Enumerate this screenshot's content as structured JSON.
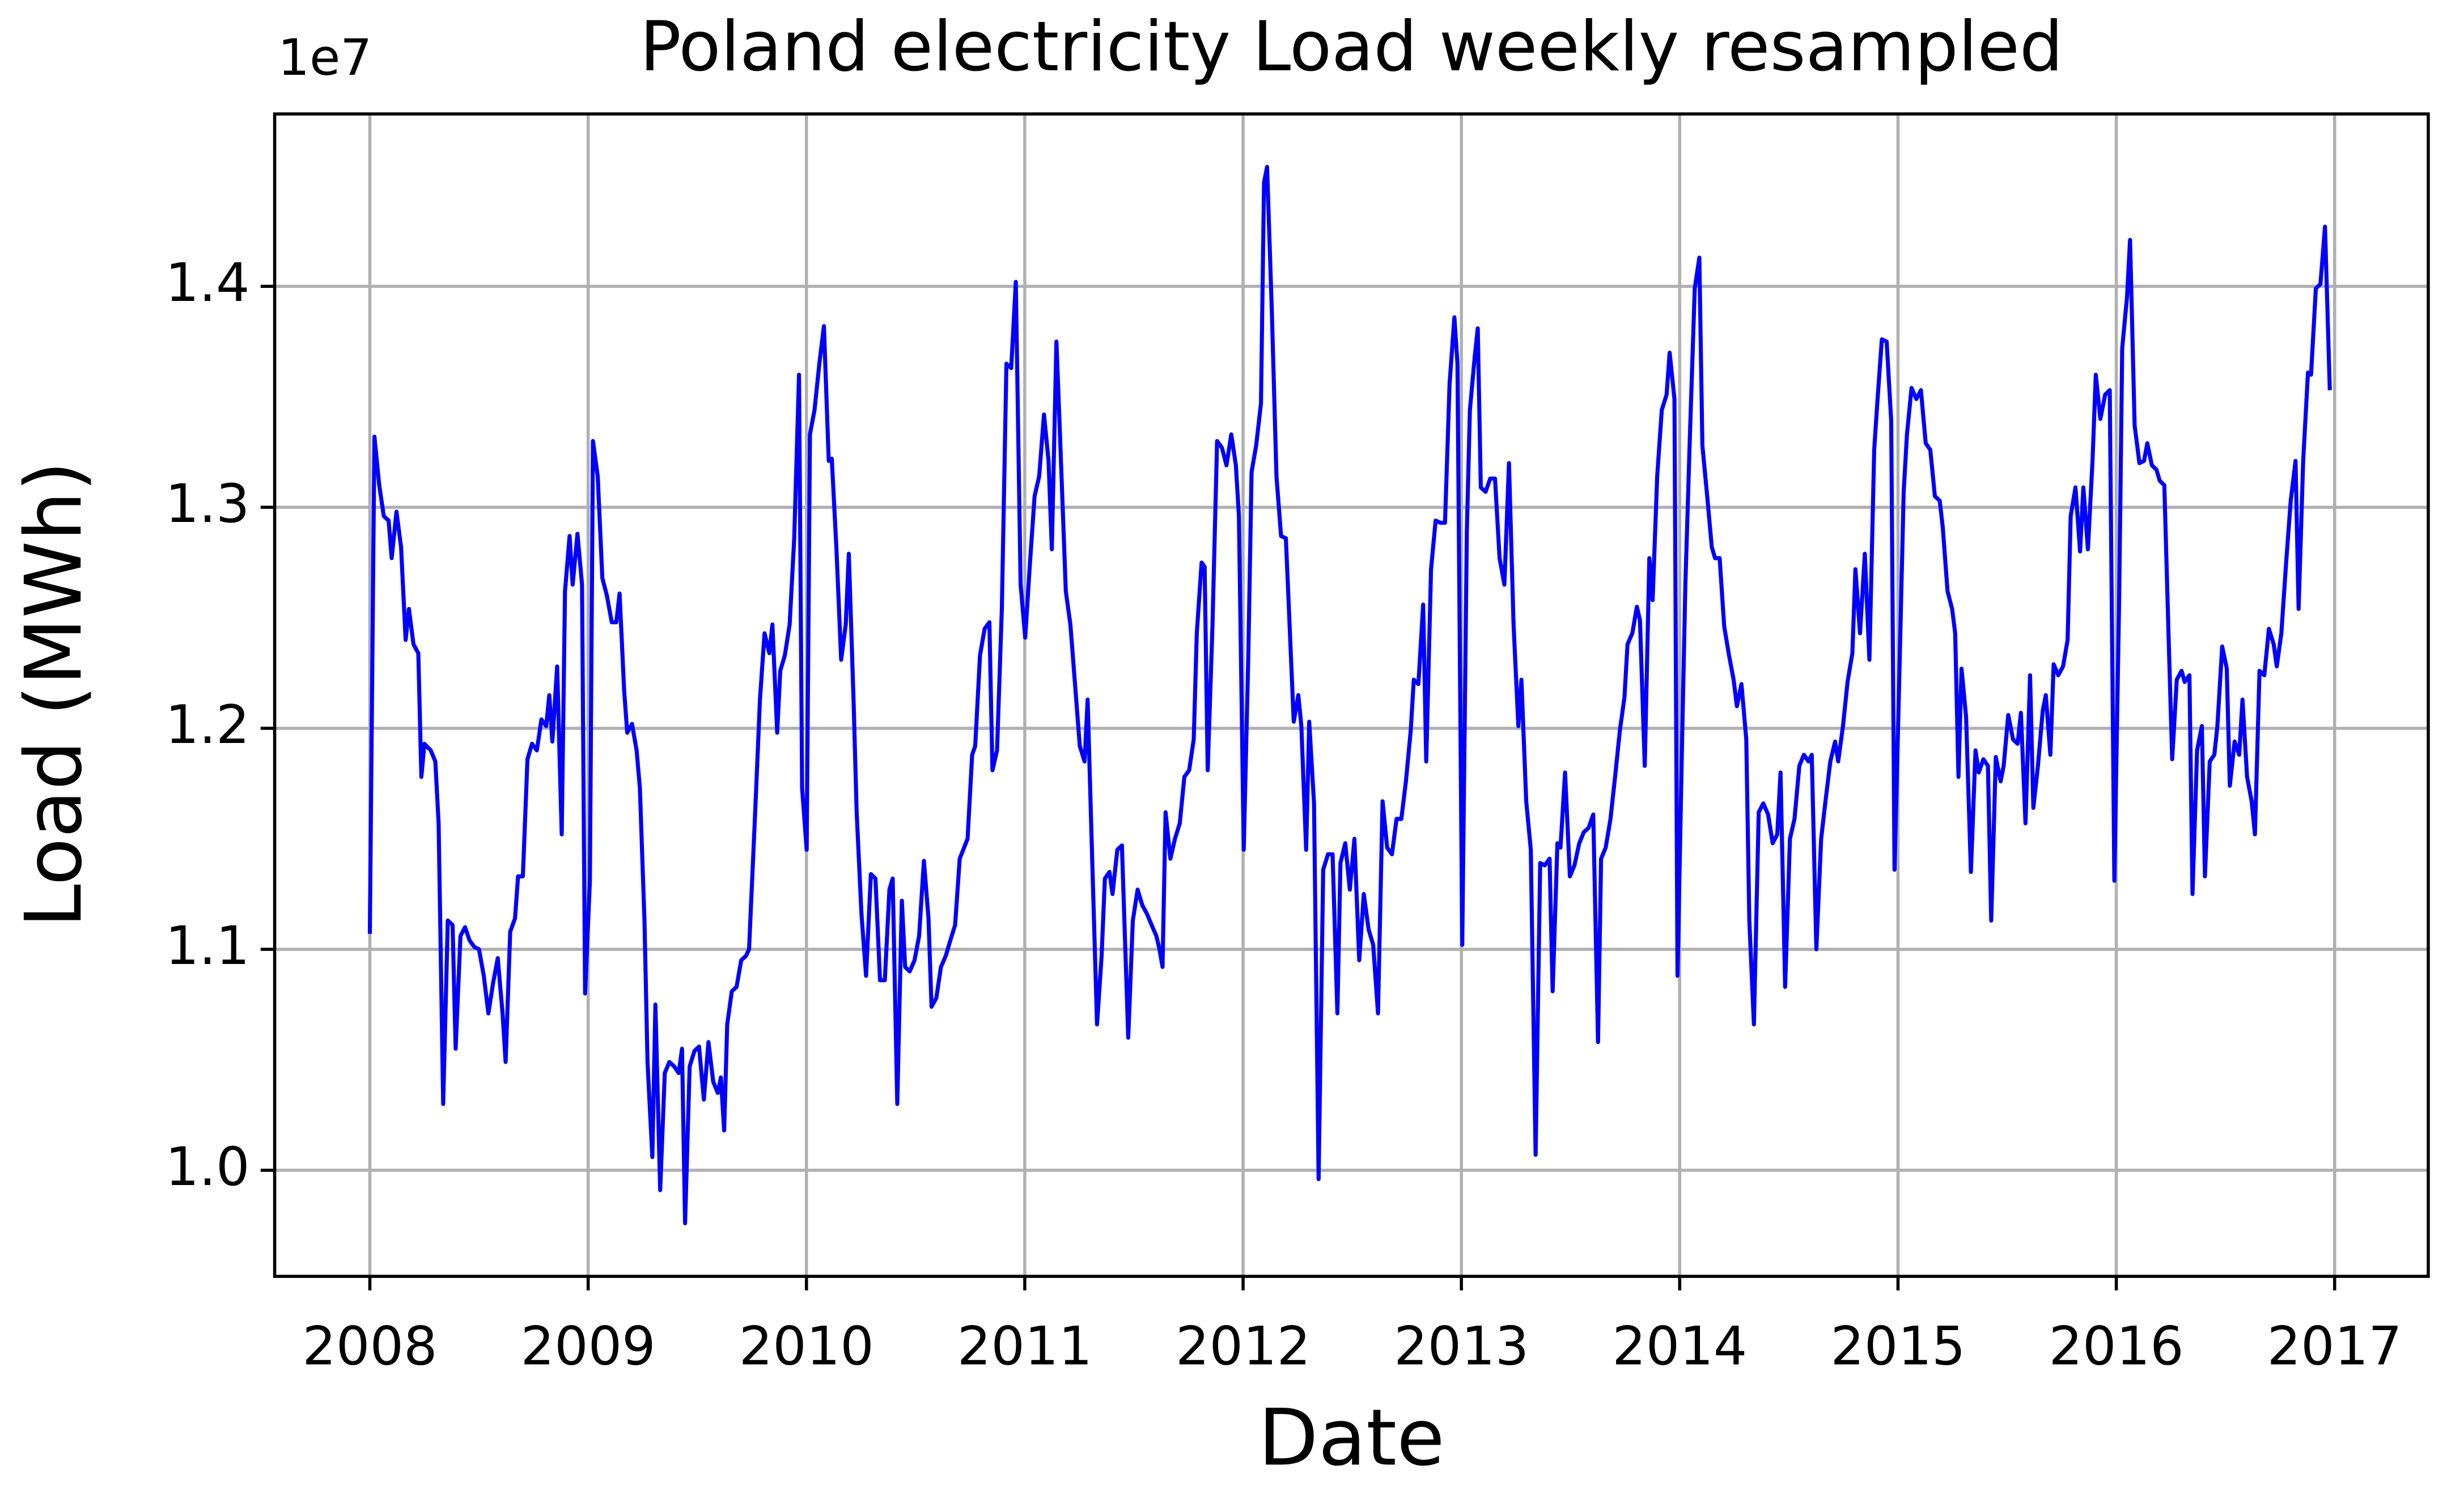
{
  "chart_data": {
    "type": "line",
    "title": "Poland electricity Load weekly resampled",
    "x_label": "Date",
    "y_label": "Load (MWh)",
    "y_offset_label": "1e7",
    "color": "#0000ff",
    "grid": true,
    "xlim": [
      2007.564,
      2017.429
    ],
    "ylim": [
      0.952,
      1.478
    ],
    "xticks": [
      2008,
      2009,
      2010,
      2011,
      2012,
      2013,
      2014,
      2015,
      2016,
      2017
    ],
    "yticks": [
      {
        "value": 1,
        "label": "1.0"
      },
      1.1,
      1.2,
      1.3,
      1.4
    ],
    "x": [
      2008,
      2008.021,
      2008.043,
      2008.064,
      2008.086,
      2008.1,
      2008.122,
      2008.143,
      2008.164,
      2008.179,
      2008.2,
      2008.222,
      2008.236,
      2008.25,
      2008.279,
      2008.3,
      2008.315,
      2008.336,
      2008.357,
      2008.379,
      2008.393,
      2008.415,
      2008.436,
      2008.457,
      2008.479,
      2008.5,
      2008.522,
      2008.543,
      2008.565,
      2008.586,
      2008.608,
      2008.622,
      2008.643,
      2008.665,
      2008.679,
      2008.701,
      2008.722,
      2008.743,
      2008.765,
      2008.786,
      2008.808,
      2008.822,
      2008.836,
      2008.858,
      2008.879,
      2008.894,
      2008.915,
      2008.929,
      2008.951,
      2008.972,
      2008.986,
      2009.008,
      2009.022,
      2009.044,
      2009.065,
      2009.086,
      2009.108,
      2009.129,
      2009.144,
      2009.165,
      2009.179,
      2009.201,
      2009.222,
      2009.237,
      2009.258,
      2009.272,
      2009.294,
      2009.308,
      2009.33,
      2009.351,
      2009.372,
      2009.394,
      2009.415,
      2009.43,
      2009.444,
      2009.465,
      2009.487,
      2009.508,
      2009.53,
      2009.551,
      2009.573,
      2009.594,
      2009.608,
      2009.623,
      2009.637,
      2009.658,
      2009.68,
      2009.701,
      2009.723,
      2009.737,
      2009.766,
      2009.787,
      2009.808,
      2009.83,
      2009.844,
      2009.866,
      2009.88,
      2009.901,
      2009.923,
      2009.944,
      2009.966,
      2009.98,
      2010.001,
      2010.016,
      2010.037,
      2010.059,
      2010.08,
      2010.102,
      2010.116,
      2010.137,
      2010.159,
      2010.18,
      2010.194,
      2010.216,
      2010.23,
      2010.252,
      2010.273,
      2010.295,
      2010.316,
      2010.337,
      2010.359,
      2010.38,
      2010.395,
      2010.416,
      2010.437,
      2010.452,
      2010.473,
      2010.495,
      2010.516,
      2010.538,
      2010.559,
      2010.573,
      2010.595,
      2010.616,
      2010.638,
      2010.659,
      2010.681,
      2010.702,
      2010.738,
      2010.759,
      2010.773,
      2010.795,
      2010.816,
      2010.838,
      2010.852,
      2010.873,
      2010.895,
      2010.916,
      2010.938,
      2010.959,
      2010.981,
      2011.002,
      2011.024,
      2011.045,
      2011.066,
      2011.088,
      2011.109,
      2011.124,
      2011.145,
      2011.159,
      2011.188,
      2011.209,
      2011.231,
      2011.252,
      2011.274,
      2011.288,
      2011.31,
      2011.331,
      2011.352,
      2011.367,
      2011.388,
      2011.402,
      2011.424,
      2011.445,
      2011.474,
      2011.495,
      2011.517,
      2011.538,
      2011.56,
      2011.581,
      2011.603,
      2011.617,
      2011.631,
      2011.645,
      2011.667,
      2011.688,
      2011.71,
      2011.731,
      2011.753,
      2011.774,
      2011.788,
      2011.81,
      2011.824,
      2011.838,
      2011.86,
      2011.881,
      2011.903,
      2011.924,
      2011.946,
      2011.967,
      2011.981,
      2012.003,
      2012.024,
      2012.039,
      2012.06,
      2012.082,
      2012.096,
      2012.11,
      2012.132,
      2012.153,
      2012.174,
      2012.196,
      2012.21,
      2012.232,
      2012.253,
      2012.267,
      2012.289,
      2012.303,
      2012.325,
      2012.346,
      2012.367,
      2012.389,
      2012.41,
      2012.432,
      2012.446,
      2012.468,
      2012.489,
      2012.51,
      2012.532,
      2012.553,
      2012.575,
      2012.596,
      2012.618,
      2012.639,
      2012.66,
      2012.682,
      2012.703,
      2012.725,
      2012.746,
      2012.768,
      2012.782,
      2012.803,
      2012.825,
      2012.839,
      2012.861,
      2012.882,
      2012.904,
      2012.925,
      2012.946,
      2012.968,
      2012.982,
      2013.004,
      2013.025,
      2013.039,
      2013.061,
      2013.075,
      2013.089,
      2013.111,
      2013.132,
      2013.154,
      2013.175,
      2013.197,
      2013.218,
      2013.239,
      2013.261,
      2013.275,
      2013.297,
      2013.318,
      2013.34,
      2013.361,
      2013.382,
      2013.404,
      2013.418,
      2013.44,
      2013.454,
      2013.475,
      2013.497,
      2013.518,
      2013.54,
      2013.561,
      2013.583,
      2013.604,
      2013.626,
      2013.64,
      2013.661,
      2013.683,
      2013.704,
      2013.726,
      2013.747,
      2013.761,
      2013.783,
      2013.804,
      2013.818,
      2013.84,
      2013.861,
      2013.876,
      2013.897,
      2013.918,
      2013.94,
      2013.954,
      2013.976,
      2013.99,
      2014.011,
      2014.026,
      2014.047,
      2014.069,
      2014.09,
      2014.104,
      2014.126,
      2014.147,
      2014.162,
      2014.183,
      2014.204,
      2014.226,
      2014.247,
      2014.262,
      2014.283,
      2014.305,
      2014.319,
      2014.34,
      2014.362,
      2014.383,
      2014.405,
      2014.426,
      2014.447,
      2014.462,
      2014.483,
      2014.505,
      2014.526,
      2014.548,
      2014.569,
      2014.59,
      2014.605,
      2014.626,
      2014.648,
      2014.669,
      2014.69,
      2014.712,
      2014.726,
      2014.748,
      2014.769,
      2014.791,
      2014.805,
      2014.826,
      2014.848,
      2014.869,
      2014.891,
      2014.905,
      2014.926,
      2014.948,
      2014.969,
      2014.984,
      2015.005,
      2015.026,
      2015.041,
      2015.062,
      2015.084,
      2015.105,
      2015.127,
      2015.148,
      2015.169,
      2015.191,
      2015.205,
      2015.227,
      2015.248,
      2015.262,
      2015.277,
      2015.291,
      2015.312,
      2015.334,
      2015.355,
      2015.37,
      2015.391,
      2015.412,
      2015.427,
      2015.448,
      2015.47,
      2015.484,
      2015.505,
      2015.527,
      2015.548,
      2015.563,
      2015.584,
      2015.605,
      2015.62,
      2015.641,
      2015.663,
      2015.677,
      2015.698,
      2015.713,
      2015.734,
      2015.756,
      2015.777,
      2015.791,
      2015.813,
      2015.834,
      2015.849,
      2015.87,
      2015.891,
      2015.906,
      2015.927,
      2015.949,
      2015.97,
      2015.991,
      2016.013,
      2016.027,
      2016.049,
      2016.063,
      2016.084,
      2016.106,
      2016.127,
      2016.142,
      2016.163,
      2016.184,
      2016.199,
      2016.22,
      2016.242,
      2016.256,
      2016.277,
      2016.299,
      2016.313,
      2016.335,
      2016.349,
      2016.37,
      2016.392,
      2016.406,
      2016.428,
      2016.449,
      2016.463,
      2016.485,
      2016.506,
      2016.52,
      2016.542,
      2016.563,
      2016.578,
      2016.599,
      2016.62,
      2016.635,
      2016.656,
      2016.678,
      2016.699,
      2016.721,
      2016.735,
      2016.756,
      2016.778,
      2016.799,
      2016.821,
      2016.835,
      2016.856,
      2016.878,
      2016.892,
      2016.914,
      2016.935,
      2016.956,
      2016.978
    ],
    "values": [
      1.107,
      1.332,
      1.31,
      1.296,
      1.294,
      1.277,
      1.298,
      1.282,
      1.24,
      1.254,
      1.238,
      1.234,
      1.178,
      1.193,
      1.19,
      1.185,
      1.157,
      1.03,
      1.113,
      1.111,
      1.055,
      1.106,
      1.11,
      1.104,
      1.101,
      1.1,
      1.088,
      1.071,
      1.085,
      1.096,
      1.071,
      1.049,
      1.108,
      1.114,
      1.133,
      1.133,
      1.186,
      1.193,
      1.19,
      1.204,
      1.201,
      1.215,
      1.194,
      1.228,
      1.152,
      1.262,
      1.287,
      1.265,
      1.288,
      1.265,
      1.08,
      1.131,
      1.33,
      1.314,
      1.268,
      1.26,
      1.248,
      1.248,
      1.261,
      1.217,
      1.198,
      1.202,
      1.19,
      1.173,
      1.113,
      1.049,
      1.006,
      1.075,
      0.991,
      1.044,
      1.049,
      1.047,
      1.044,
      1.055,
      0.976,
      1.047,
      1.054,
      1.056,
      1.032,
      1.058,
      1.04,
      1.035,
      1.042,
      1.018,
      1.066,
      1.081,
      1.083,
      1.095,
      1.097,
      1.1,
      1.164,
      1.213,
      1.243,
      1.234,
      1.247,
      1.198,
      1.226,
      1.233,
      1.247,
      1.286,
      1.36,
      1.173,
      1.145,
      1.333,
      1.344,
      1.365,
      1.382,
      1.321,
      1.322,
      1.282,
      1.231,
      1.247,
      1.279,
      1.212,
      1.162,
      1.116,
      1.088,
      1.134,
      1.132,
      1.086,
      1.086,
      1.127,
      1.132,
      1.03,
      1.122,
      1.092,
      1.09,
      1.095,
      1.106,
      1.14,
      1.114,
      1.074,
      1.078,
      1.092,
      1.097,
      1.104,
      1.111,
      1.141,
      1.15,
      1.188,
      1.192,
      1.233,
      1.245,
      1.248,
      1.181,
      1.19,
      1.254,
      1.365,
      1.363,
      1.402,
      1.265,
      1.241,
      1.275,
      1.305,
      1.314,
      1.342,
      1.321,
      1.281,
      1.375,
      1.339,
      1.262,
      1.247,
      1.219,
      1.192,
      1.185,
      1.213,
      1.137,
      1.066,
      1.097,
      1.132,
      1.135,
      1.125,
      1.145,
      1.147,
      1.06,
      1.113,
      1.127,
      1.12,
      1.116,
      1.111,
      1.106,
      1.1,
      1.092,
      1.162,
      1.141,
      1.15,
      1.157,
      1.178,
      1.181,
      1.195,
      1.243,
      1.275,
      1.273,
      1.181,
      1.247,
      1.33,
      1.327,
      1.319,
      1.333,
      1.319,
      1.296,
      1.145,
      1.233,
      1.316,
      1.328,
      1.347,
      1.447,
      1.454,
      1.388,
      1.314,
      1.287,
      1.286,
      1.254,
      1.203,
      1.215,
      1.201,
      1.145,
      1.203,
      1.166,
      0.996,
      1.136,
      1.143,
      1.143,
      1.071,
      1.139,
      1.148,
      1.127,
      1.15,
      1.095,
      1.125,
      1.109,
      1.102,
      1.071,
      1.167,
      1.146,
      1.143,
      1.159,
      1.159,
      1.176,
      1.199,
      1.222,
      1.22,
      1.256,
      1.185,
      1.272,
      1.294,
      1.293,
      1.293,
      1.356,
      1.386,
      1.365,
      1.102,
      1.289,
      1.344,
      1.368,
      1.381,
      1.309,
      1.307,
      1.313,
      1.313,
      1.277,
      1.265,
      1.32,
      1.247,
      1.201,
      1.222,
      1.167,
      1.145,
      1.007,
      1.139,
      1.138,
      1.141,
      1.081,
      1.148,
      1.146,
      1.18,
      1.133,
      1.138,
      1.148,
      1.153,
      1.155,
      1.161,
      1.058,
      1.141,
      1.146,
      1.159,
      1.178,
      1.199,
      1.214,
      1.238,
      1.243,
      1.255,
      1.249,
      1.183,
      1.277,
      1.258,
      1.314,
      1.344,
      1.351,
      1.37,
      1.349,
      1.088,
      1.194,
      1.265,
      1.333,
      1.399,
      1.413,
      1.328,
      1.305,
      1.282,
      1.277,
      1.277,
      1.246,
      1.233,
      1.222,
      1.21,
      1.22,
      1.195,
      1.113,
      1.066,
      1.162,
      1.166,
      1.161,
      1.148,
      1.152,
      1.18,
      1.083,
      1.15,
      1.159,
      1.183,
      1.188,
      1.185,
      1.188,
      1.1,
      1.15,
      1.168,
      1.185,
      1.194,
      1.185,
      1.201,
      1.221,
      1.234,
      1.272,
      1.243,
      1.279,
      1.231,
      1.326,
      1.347,
      1.376,
      1.375,
      1.339,
      1.136,
      1.219,
      1.307,
      1.333,
      1.354,
      1.349,
      1.353,
      1.329,
      1.326,
      1.305,
      1.303,
      1.291,
      1.262,
      1.254,
      1.243,
      1.178,
      1.227,
      1.205,
      1.135,
      1.19,
      1.18,
      1.186,
      1.183,
      1.113,
      1.187,
      1.176,
      1.183,
      1.206,
      1.195,
      1.193,
      1.207,
      1.157,
      1.224,
      1.164,
      1.183,
      1.208,
      1.215,
      1.188,
      1.229,
      1.224,
      1.228,
      1.24,
      1.296,
      1.309,
      1.28,
      1.309,
      1.281,
      1.321,
      1.36,
      1.34,
      1.351,
      1.353,
      1.131,
      1.258,
      1.372,
      1.395,
      1.421,
      1.337,
      1.32,
      1.321,
      1.329,
      1.319,
      1.317,
      1.312,
      1.31,
      1.233,
      1.186,
      1.222,
      1.226,
      1.221,
      1.224,
      1.125,
      1.19,
      1.201,
      1.133,
      1.185,
      1.188,
      1.201,
      1.237,
      1.227,
      1.174,
      1.194,
      1.188,
      1.213,
      1.178,
      1.167,
      1.152,
      1.226,
      1.224,
      1.245,
      1.238,
      1.228,
      1.243,
      1.275,
      1.303,
      1.321,
      1.254,
      1.321,
      1.361,
      1.36,
      1.399,
      1.401,
      1.427,
      1.353
    ]
  }
}
